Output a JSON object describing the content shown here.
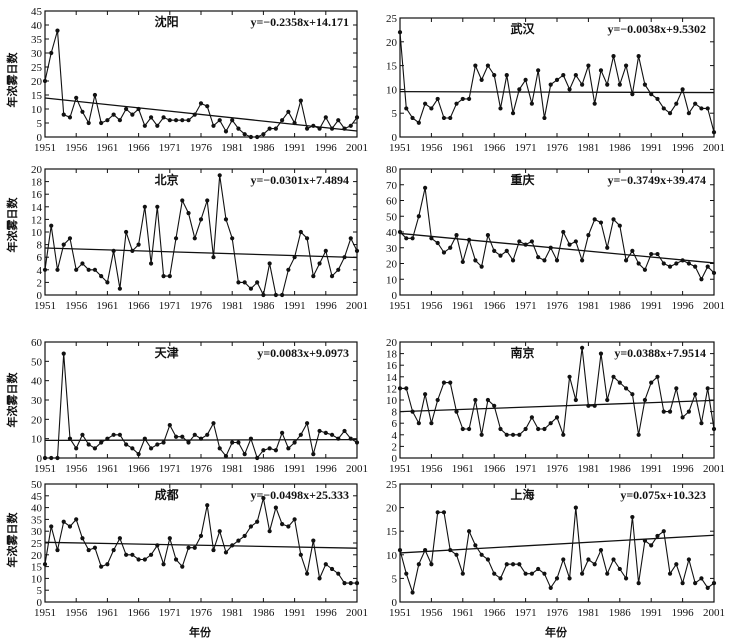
{
  "figure": {
    "y_label": "年浓雾日数",
    "x_label": "年份"
  },
  "chart_data": [
    {
      "type": "line",
      "panel": "shenyang",
      "title": "沈阳",
      "equation": "y=−0.2358x+14.171",
      "trend": {
        "slope": -0.2358,
        "intercept": 14.171
      },
      "ylim": [
        0,
        45
      ],
      "yticks": [
        0,
        5,
        10,
        15,
        20,
        25,
        30,
        35,
        40,
        45
      ],
      "xlim": [
        1951,
        2001
      ],
      "xticks": [
        1951,
        1956,
        1961,
        1966,
        1971,
        1976,
        1981,
        1986,
        1991,
        1996,
        2001
      ],
      "x_start": 1951,
      "values": [
        20,
        30,
        38,
        8,
        7,
        14,
        9,
        5,
        15,
        5,
        6,
        8,
        6,
        10,
        8,
        10,
        4,
        7,
        4,
        7,
        6,
        6,
        6,
        6,
        8,
        12,
        11,
        4,
        6,
        2,
        6,
        3,
        1,
        0,
        0,
        1,
        3,
        3,
        6,
        9,
        5,
        13,
        3,
        4,
        3,
        7,
        3,
        6,
        3,
        4,
        7
      ]
    },
    {
      "type": "line",
      "panel": "wuhan",
      "title": "武汉",
      "equation": "y=−0.0038x+9.5302",
      "trend": {
        "slope": -0.0038,
        "intercept": 9.5302
      },
      "ylim": [
        0,
        25
      ],
      "yticks": [
        0,
        5,
        10,
        15,
        20,
        25
      ],
      "xlim": [
        1951,
        2001
      ],
      "xticks": [
        1951,
        1956,
        1961,
        1966,
        1971,
        1976,
        1981,
        1986,
        1991,
        1996,
        2001
      ],
      "x_start": 1951,
      "values": [
        22,
        6,
        4,
        3,
        7,
        6,
        8,
        4,
        4,
        7,
        8,
        8,
        15,
        12,
        15,
        13,
        6,
        13,
        5,
        10,
        12,
        7,
        14,
        4,
        11,
        12,
        13,
        10,
        13,
        11,
        15,
        7,
        14,
        11,
        17,
        11,
        15,
        9,
        17,
        11,
        9,
        8,
        6,
        5,
        7,
        10,
        5,
        7,
        6,
        6,
        1
      ]
    },
    {
      "type": "line",
      "panel": "beijing",
      "title": "北京",
      "equation": "y=−0.0301x+7.4894",
      "trend": {
        "slope": -0.0301,
        "intercept": 7.4894
      },
      "ylim": [
        0,
        20
      ],
      "yticks": [
        0,
        2,
        4,
        6,
        8,
        10,
        12,
        14,
        16,
        18,
        20
      ],
      "xlim": [
        1951,
        2001
      ],
      "xticks": [
        1951,
        1956,
        1961,
        1966,
        1971,
        1976,
        1981,
        1986,
        1991,
        1996,
        2001
      ],
      "x_start": 1951,
      "values": [
        4,
        11,
        4,
        8,
        9,
        4,
        5,
        4,
        4,
        3,
        2,
        7,
        1,
        10,
        7,
        8,
        14,
        5,
        14,
        3,
        3,
        9,
        15,
        13,
        9,
        12,
        15,
        6,
        19,
        12,
        9,
        2,
        2,
        1,
        2,
        0,
        5,
        0,
        0,
        4,
        6,
        10,
        9,
        3,
        5,
        7,
        3,
        4,
        6,
        9,
        7
      ]
    },
    {
      "type": "line",
      "panel": "chongqing",
      "title": "重庆",
      "equation": "y=−0.3749x+39.474",
      "trend": {
        "slope": -0.3749,
        "intercept": 39.474
      },
      "ylim": [
        0,
        80
      ],
      "yticks": [
        0,
        10,
        20,
        30,
        40,
        50,
        60,
        70,
        80
      ],
      "xlim": [
        1951,
        2001
      ],
      "xticks": [
        1951,
        1956,
        1961,
        1966,
        1971,
        1976,
        1981,
        1986,
        1991,
        1996,
        2001
      ],
      "x_start": 1951,
      "values": [
        40,
        36,
        36,
        50,
        68,
        36,
        33,
        27,
        30,
        38,
        21,
        35,
        22,
        18,
        38,
        28,
        25,
        28,
        22,
        34,
        32,
        34,
        24,
        22,
        30,
        22,
        40,
        32,
        34,
        22,
        38,
        48,
        46,
        30,
        48,
        44,
        22,
        28,
        20,
        16,
        26,
        26,
        20,
        18,
        20,
        22,
        20,
        18,
        10,
        18,
        14
      ]
    },
    {
      "type": "line",
      "panel": "tianjin",
      "title": "天津",
      "equation": "y=0.0083x+9.0973",
      "trend": {
        "slope": 0.0083,
        "intercept": 9.0973
      },
      "ylim": [
        0,
        60
      ],
      "yticks": [
        0,
        10,
        20,
        30,
        40,
        50,
        60
      ],
      "xlim": [
        1951,
        2001
      ],
      "xticks": [
        1951,
        1956,
        1961,
        1966,
        1971,
        1976,
        1981,
        1986,
        1991,
        1996,
        2001
      ],
      "x_start": 1951,
      "values": [
        0,
        0,
        0,
        54,
        10,
        5,
        12,
        7,
        5,
        8,
        10,
        12,
        12,
        7,
        5,
        2,
        10,
        5,
        7,
        8,
        17,
        11,
        11,
        8,
        12,
        10,
        12,
        18,
        5,
        1,
        8,
        8,
        2,
        10,
        0,
        4,
        5,
        4,
        13,
        5,
        8,
        12,
        18,
        2,
        14,
        13,
        12,
        10,
        14,
        10,
        8
      ]
    },
    {
      "type": "line",
      "panel": "nanjing",
      "title": "南京",
      "equation": "y=0.0388x+7.9514",
      "trend": {
        "slope": 0.0388,
        "intercept": 7.9514
      },
      "ylim": [
        0,
        20
      ],
      "yticks": [
        0,
        2,
        4,
        6,
        8,
        10,
        12,
        14,
        16,
        18,
        20
      ],
      "xlim": [
        1951,
        2001
      ],
      "xticks": [
        1951,
        1956,
        1961,
        1966,
        1971,
        1976,
        1981,
        1986,
        1991,
        1996,
        2001
      ],
      "x_start": 1951,
      "values": [
        12,
        12,
        8,
        6,
        11,
        6,
        10,
        13,
        13,
        8,
        5,
        5,
        10,
        4,
        10,
        9,
        5,
        4,
        4,
        4,
        5,
        7,
        5,
        5,
        6,
        7,
        4,
        14,
        10,
        19,
        9,
        9,
        18,
        10,
        14,
        13,
        12,
        11,
        4,
        10,
        13,
        14,
        8,
        8,
        12,
        7,
        8,
        11,
        6,
        12,
        5
      ]
    },
    {
      "type": "line",
      "panel": "chengdu",
      "title": "成都",
      "equation": "y=−0.0498x+25.333",
      "trend": {
        "slope": -0.0498,
        "intercept": 25.333
      },
      "ylim": [
        0,
        50
      ],
      "yticks": [
        0,
        5,
        10,
        15,
        20,
        25,
        30,
        35,
        40,
        45,
        50
      ],
      "xlim": [
        1951,
        2001
      ],
      "xticks": [
        1951,
        1956,
        1961,
        1966,
        1971,
        1976,
        1981,
        1986,
        1991,
        1996,
        2001
      ],
      "x_start": 1951,
      "values": [
        16,
        32,
        22,
        34,
        32,
        35,
        27,
        22,
        23,
        15,
        16,
        22,
        27,
        20,
        20,
        18,
        18,
        20,
        24,
        16,
        27,
        18,
        15,
        23,
        23,
        28,
        41,
        22,
        30,
        21,
        24,
        26,
        28,
        32,
        34,
        44,
        30,
        40,
        33,
        32,
        35,
        20,
        12,
        26,
        10,
        16,
        14,
        12,
        8,
        8,
        8
      ]
    },
    {
      "type": "line",
      "panel": "shanghai",
      "title": "上海",
      "equation": "y=0.075x+10.323",
      "trend": {
        "slope": 0.075,
        "intercept": 10.323
      },
      "ylim": [
        0,
        25
      ],
      "yticks": [
        0,
        5,
        10,
        15,
        20,
        25
      ],
      "xlim": [
        1951,
        2001
      ],
      "xticks": [
        1951,
        1956,
        1961,
        1966,
        1971,
        1976,
        1981,
        1986,
        1991,
        1996,
        2001
      ],
      "x_start": 1951,
      "values": [
        11,
        6,
        2,
        8,
        11,
        8,
        19,
        19,
        11,
        10,
        6,
        15,
        12,
        10,
        9,
        6,
        5,
        8,
        8,
        8,
        6,
        6,
        7,
        6,
        3,
        5,
        9,
        5,
        20,
        6,
        9,
        8,
        11,
        6,
        9,
        7,
        5,
        18,
        4,
        13,
        12,
        14,
        15,
        6,
        8,
        4,
        9,
        4,
        5,
        3,
        4
      ]
    }
  ]
}
